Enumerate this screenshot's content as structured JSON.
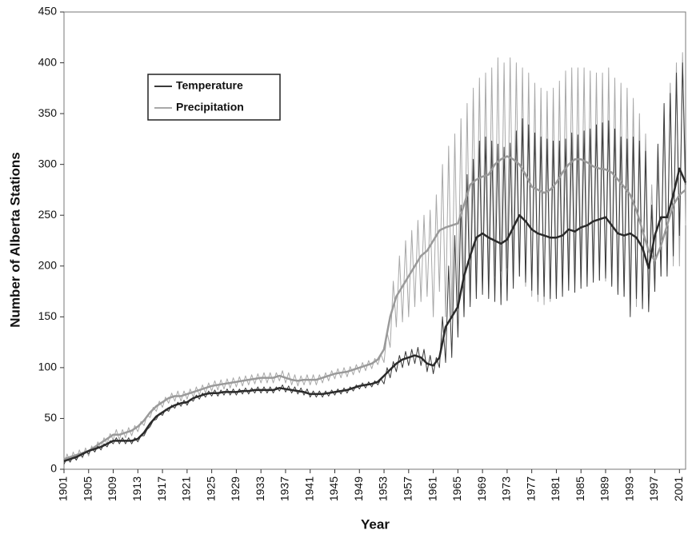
{
  "chart_data": {
    "type": "line",
    "ylabel": "Number of Alberta Stations",
    "xlabel": "Year",
    "xlim": [
      1901,
      2002
    ],
    "ylim": [
      0,
      450
    ],
    "xticks": [
      1901,
      1905,
      1909,
      1913,
      1917,
      1921,
      1925,
      1929,
      1933,
      1937,
      1941,
      1945,
      1949,
      1953,
      1957,
      1961,
      1965,
      1969,
      1973,
      1977,
      1981,
      1985,
      1989,
      1993,
      1997,
      2001
    ],
    "yticks": [
      0,
      50,
      100,
      150,
      200,
      250,
      300,
      350,
      400,
      450
    ],
    "x": [
      1901,
      1901.5,
      1902,
      1902.5,
      1903,
      1903.5,
      1904,
      1904.5,
      1905,
      1905.5,
      1906,
      1906.5,
      1907,
      1907.5,
      1908,
      1908.5,
      1909,
      1909.5,
      1910,
      1910.5,
      1911,
      1911.5,
      1912,
      1912.5,
      1913,
      1913.5,
      1914,
      1914.5,
      1915,
      1915.5,
      1916,
      1916.5,
      1917,
      1917.5,
      1918,
      1918.5,
      1919,
      1919.5,
      1920,
      1920.5,
      1921,
      1921.5,
      1922,
      1922.5,
      1923,
      1923.5,
      1924,
      1924.5,
      1925,
      1925.5,
      1926,
      1926.5,
      1927,
      1927.5,
      1928,
      1928.5,
      1929,
      1929.5,
      1930,
      1930.5,
      1931,
      1931.5,
      1932,
      1932.5,
      1933,
      1933.5,
      1934,
      1934.5,
      1935,
      1935.5,
      1936,
      1936.5,
      1937,
      1937.5,
      1938,
      1938.5,
      1939,
      1939.5,
      1940,
      1940.5,
      1941,
      1941.5,
      1942,
      1942.5,
      1943,
      1943.5,
      1944,
      1944.5,
      1945,
      1945.5,
      1946,
      1946.5,
      1947,
      1947.5,
      1948,
      1948.5,
      1949,
      1949.5,
      1950,
      1950.5,
      1951,
      1951.5,
      1952,
      1952.5,
      1953,
      1953.5,
      1954,
      1954.5,
      1955,
      1955.5,
      1956,
      1956.5,
      1957,
      1957.5,
      1958,
      1958.5,
      1959,
      1959.5,
      1960,
      1960.5,
      1961,
      1961.5,
      1962,
      1962.5,
      1963,
      1963.5,
      1964,
      1964.5,
      1965,
      1965.5,
      1966,
      1966.5,
      1967,
      1967.5,
      1968,
      1968.5,
      1969,
      1969.5,
      1970,
      1970.5,
      1971,
      1971.5,
      1972,
      1972.5,
      1973,
      1973.5,
      1974,
      1974.5,
      1975,
      1975.5,
      1976,
      1976.5,
      1977,
      1977.5,
      1978,
      1978.5,
      1979,
      1979.5,
      1980,
      1980.5,
      1981,
      1981.5,
      1982,
      1982.5,
      1983,
      1983.5,
      1984,
      1984.5,
      1985,
      1985.5,
      1986,
      1986.5,
      1987,
      1987.5,
      1988,
      1988.5,
      1989,
      1989.5,
      1990,
      1990.5,
      1991,
      1991.5,
      1992,
      1992.5,
      1993,
      1993.5,
      1994,
      1994.5,
      1995,
      1995.5,
      1996,
      1996.5,
      1997,
      1997.5,
      1998,
      1998.5,
      1999,
      1999.5,
      2000,
      2000.5,
      2001,
      2001.5,
      2002
    ],
    "x_yearly": [
      1901,
      1902,
      1903,
      1904,
      1905,
      1906,
      1907,
      1908,
      1909,
      1910,
      1911,
      1912,
      1913,
      1914,
      1915,
      1916,
      1917,
      1918,
      1919,
      1920,
      1921,
      1922,
      1923,
      1924,
      1925,
      1926,
      1927,
      1928,
      1929,
      1930,
      1931,
      1932,
      1933,
      1934,
      1935,
      1936,
      1937,
      1938,
      1939,
      1940,
      1941,
      1942,
      1943,
      1944,
      1945,
      1946,
      1947,
      1948,
      1949,
      1950,
      1951,
      1952,
      1953,
      1954,
      1955,
      1956,
      1957,
      1958,
      1959,
      1960,
      1961,
      1962,
      1963,
      1964,
      1965,
      1966,
      1967,
      1968,
      1969,
      1970,
      1971,
      1972,
      1973,
      1974,
      1975,
      1976,
      1977,
      1978,
      1979,
      1980,
      1981,
      1982,
      1983,
      1984,
      1985,
      1986,
      1987,
      1988,
      1989,
      1990,
      1991,
      1992,
      1993,
      1994,
      1995,
      1996,
      1997,
      1998,
      1999,
      2000,
      2001,
      2002
    ],
    "series": [
      {
        "name": "Precipitation",
        "color": "#a8a8a8",
        "trend_color": "#9a9a9a",
        "values": [
          5,
          15,
          7,
          17,
          9,
          19,
          11,
          21,
          13,
          23,
          17,
          27,
          21,
          31,
          25,
          35,
          29,
          39,
          29,
          39,
          31,
          41,
          33,
          43,
          37,
          47,
          43,
          53,
          51,
          61,
          57,
          67,
          61,
          71,
          65,
          75,
          67,
          77,
          67,
          77,
          69,
          79,
          71,
          81,
          73,
          83,
          75,
          85,
          77,
          87,
          78,
          88,
          79,
          89,
          80,
          90,
          81,
          91,
          82,
          92,
          83,
          93,
          84,
          94,
          85,
          95,
          85,
          95,
          85,
          95,
          87,
          97,
          85,
          95,
          83,
          93,
          82,
          92,
          83,
          93,
          83,
          93,
          83,
          93,
          85,
          95,
          87,
          97,
          89,
          99,
          90,
          100,
          91,
          101,
          93,
          103,
          95,
          105,
          97,
          107,
          99,
          109,
          103,
          113,
          105,
          135,
          120,
          185,
          140,
          210,
          145,
          225,
          150,
          235,
          160,
          245,
          165,
          250,
          170,
          255,
          150,
          270,
          175,
          300,
          150,
          318,
          150,
          330,
          160,
          345,
          165,
          360,
          170,
          375,
          175,
          385,
          178,
          390,
          180,
          395,
          190,
          405,
          195,
          400,
          198,
          405,
          195,
          400,
          190,
          395,
          180,
          390,
          170,
          380,
          165,
          375,
          162,
          372,
          165,
          375,
          172,
          382,
          182,
          392,
          190,
          395,
          195,
          395,
          195,
          395,
          192,
          392,
          188,
          390,
          186,
          390,
          185,
          395,
          182,
          385,
          175,
          380,
          170,
          375,
          165,
          365,
          160,
          350,
          165,
          330,
          175,
          280,
          185,
          300,
          190,
          340,
          195,
          380,
          200,
          400,
          200,
          410,
          240
        ],
        "trend": [
          10,
          12,
          14,
          16,
          18,
          22,
          26,
          30,
          34,
          34,
          36,
          38,
          42,
          48,
          56,
          62,
          66,
          70,
          72,
          72,
          74,
          76,
          78,
          80,
          82,
          83,
          84,
          85,
          86,
          87,
          88,
          89,
          90,
          90,
          90,
          92,
          90,
          88,
          87,
          88,
          88,
          88,
          90,
          92,
          94,
          95,
          96,
          98,
          100,
          102,
          104,
          108,
          118,
          150,
          170,
          180,
          190,
          200,
          210,
          215,
          225,
          235,
          238,
          240,
          242,
          260,
          280,
          285,
          288,
          290,
          300,
          305,
          308,
          305,
          300,
          290,
          278,
          275,
          272,
          275,
          282,
          292,
          300,
          305,
          305,
          302,
          298,
          296,
          295,
          292,
          285,
          278,
          270,
          255,
          235,
          215,
          205,
          220,
          240,
          260,
          270,
          275
        ]
      },
      {
        "name": "Temperature",
        "color": "#3a3a3a",
        "trend_color": "#2a2a2a",
        "values": [
          5,
          11,
          7,
          13,
          9,
          15,
          12,
          18,
          15,
          21,
          17,
          23,
          19,
          25,
          22,
          28,
          25,
          31,
          25,
          31,
          25,
          31,
          25,
          31,
          27,
          33,
          33,
          39,
          42,
          48,
          49,
          55,
          53,
          59,
          57,
          63,
          60,
          66,
          62,
          68,
          63,
          69,
          67,
          73,
          69,
          75,
          71,
          77,
          72,
          78,
          72,
          78,
          73,
          79,
          73,
          79,
          73,
          79,
          74,
          80,
          74,
          80,
          75,
          81,
          75,
          81,
          75,
          81,
          75,
          81,
          77,
          83,
          76,
          82,
          75,
          81,
          74,
          80,
          73,
          79,
          71,
          77,
          71,
          77,
          71,
          77,
          72,
          78,
          73,
          79,
          74,
          80,
          75,
          81,
          77,
          83,
          79,
          85,
          80,
          86,
          81,
          87,
          83,
          89,
          84,
          100,
          90,
          106,
          96,
          112,
          100,
          116,
          102,
          118,
          104,
          120,
          102,
          118,
          96,
          112,
          94,
          110,
          100,
          150,
          105,
          200,
          110,
          230,
          130,
          260,
          150,
          290,
          160,
          305,
          168,
          323,
          172,
          327,
          168,
          323,
          165,
          320,
          162,
          317,
          166,
          321,
          178,
          333,
          190,
          345,
          184,
          339,
          176,
          331,
          172,
          327,
          170,
          325,
          168,
          323,
          168,
          323,
          170,
          325,
          176,
          331,
          174,
          329,
          178,
          333,
          180,
          335,
          184,
          339,
          186,
          341,
          188,
          343,
          180,
          335,
          172,
          327,
          170,
          325,
          150,
          327,
          168,
          323,
          158,
          313,
          155,
          260,
          175,
          320,
          190,
          360,
          190,
          370,
          210,
          390,
          230,
          400,
          280
        ],
        "trend": [
          8,
          10,
          12,
          15,
          18,
          20,
          22,
          25,
          28,
          28,
          28,
          28,
          30,
          36,
          45,
          52,
          56,
          60,
          63,
          65,
          66,
          70,
          72,
          74,
          75,
          75,
          76,
          76,
          76,
          77,
          77,
          78,
          78,
          78,
          78,
          80,
          79,
          78,
          77,
          76,
          74,
          74,
          74,
          75,
          76,
          77,
          78,
          80,
          82,
          83,
          84,
          86,
          92,
          98,
          104,
          108,
          110,
          112,
          110,
          104,
          102,
          110,
          140,
          150,
          160,
          190,
          210,
          228,
          232,
          228,
          225,
          222,
          226,
          238,
          250,
          244,
          236,
          232,
          230,
          228,
          228,
          230,
          236,
          234,
          238,
          240,
          244,
          246,
          248,
          240,
          232,
          230,
          232,
          228,
          218,
          198,
          230,
          248,
          248,
          270,
          296,
          282
        ]
      }
    ],
    "legend": "upper-left"
  }
}
